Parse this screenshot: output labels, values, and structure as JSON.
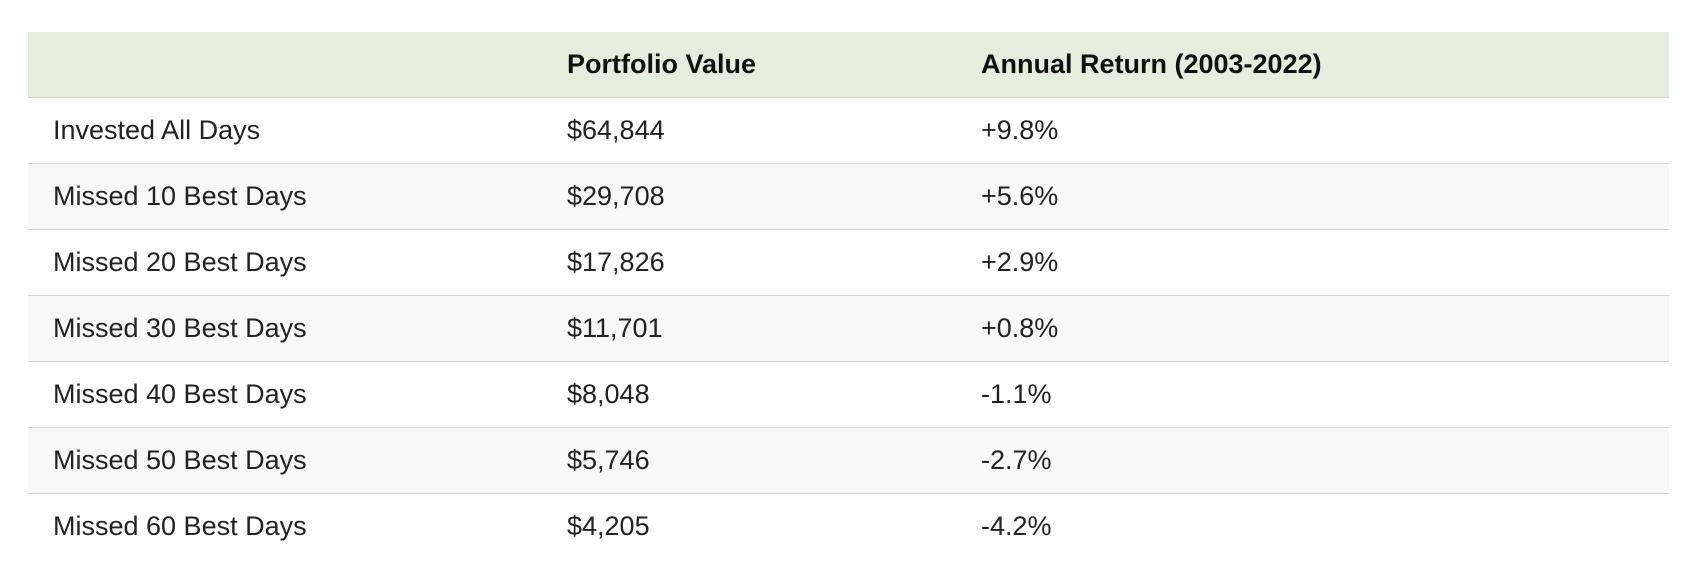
{
  "table": {
    "headers": [
      "",
      "Portfolio Value",
      "Annual Return (2003-2022)"
    ],
    "rows": [
      {
        "label": "Invested All Days",
        "value": "$64,844",
        "return": "+9.8%"
      },
      {
        "label": "Missed 10 Best Days",
        "value": "$29,708",
        "return": "+5.6%"
      },
      {
        "label": "Missed 20 Best Days",
        "value": "$17,826",
        "return": "+2.9%"
      },
      {
        "label": "Missed 30 Best Days",
        "value": "$11,701",
        "return": "+0.8%"
      },
      {
        "label": "Missed 40 Best Days",
        "value": "$8,048",
        "return": "-1.1%"
      },
      {
        "label": "Missed 50 Best Days",
        "value": "$5,746",
        "return": "-2.7%"
      },
      {
        "label": "Missed 60 Best Days",
        "value": "$4,205",
        "return": "-4.2%"
      }
    ]
  },
  "colors": {
    "header_background": "#e5eedc",
    "stripe_background": "#f8f8f8",
    "row_divider": "#d4d4d4"
  }
}
